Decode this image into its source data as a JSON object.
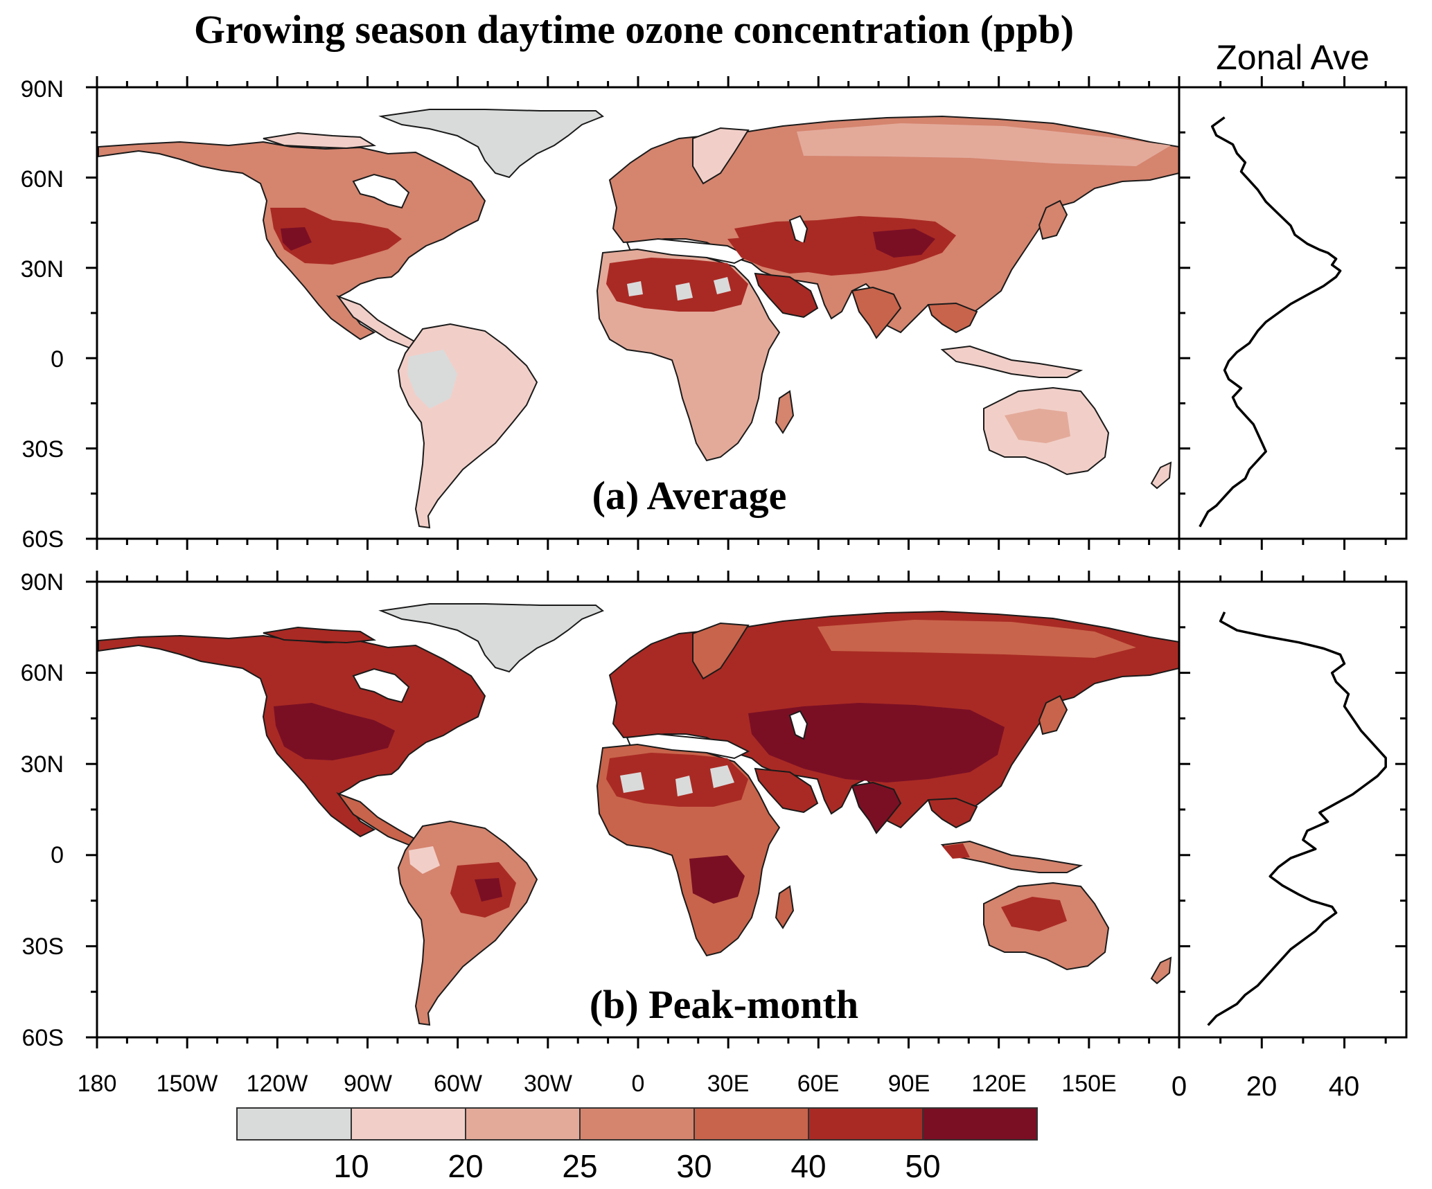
{
  "figure": {
    "title": "Growing season daytime ozone concentration (ppb)",
    "zonal_title": "Zonal Ave"
  },
  "axes": {
    "lat_labels": [
      "90N",
      "60N",
      "30N",
      "0",
      "30S",
      "60S"
    ],
    "lon_labels": [
      "180",
      "150W",
      "120W",
      "90W",
      "60W",
      "30W",
      "0",
      "30E",
      "60E",
      "90E",
      "120E",
      "150E"
    ],
    "zonal_tick_labels": [
      "0",
      "20",
      "40"
    ]
  },
  "panels": [
    {
      "id": "a",
      "label": "(a) Average"
    },
    {
      "id": "b",
      "label": "(b) Peak-month"
    }
  ],
  "colorbar": {
    "labels": [
      "10",
      "20",
      "25",
      "30",
      "40",
      "50"
    ],
    "colors": [
      "#d9dbdb",
      "#f1cfc8",
      "#e3aa9a",
      "#d5846e",
      "#c8644b",
      "#a92a24",
      "#7a0f24"
    ]
  },
  "chart_data": [
    {
      "type": "line",
      "title": "Zonal Ave",
      "xlabel": "",
      "ylabel": "",
      "xlim": [
        0,
        55
      ],
      "ylim": [
        -60,
        90
      ],
      "series": [
        {
          "x": [
            11,
            8,
            9,
            13,
            14,
            16,
            15,
            17,
            19,
            21,
            24,
            27,
            28,
            31,
            34,
            36,
            38,
            37,
            39,
            38,
            35,
            31,
            27,
            24,
            21,
            19,
            17,
            14,
            12,
            11,
            12,
            15,
            13,
            14,
            16,
            18,
            19,
            20,
            21,
            19,
            17,
            16,
            13,
            11,
            9,
            7,
            5
          ],
          "y": [
            80,
            77,
            74,
            71,
            68,
            65,
            62,
            59,
            56,
            52,
            48,
            44,
            41,
            38,
            36,
            35,
            33,
            31,
            29,
            27,
            24,
            21,
            18,
            15,
            12,
            9,
            5,
            2,
            -1,
            -4,
            -7,
            -10,
            -13,
            -16,
            -19,
            -22,
            -25,
            -28,
            -31,
            -34,
            -37,
            -40,
            -43,
            -46,
            -49,
            -51,
            -56
          ]
        }
      ]
    },
    {
      "type": "line",
      "title": "Zonal Ave",
      "xlabel": "",
      "ylabel": "",
      "xlim": [
        0,
        55
      ],
      "ylim": [
        -60,
        90
      ],
      "series": [
        {
          "x": [
            11,
            10,
            14,
            21,
            29,
            35,
            39,
            40,
            37,
            38,
            41,
            40,
            42,
            44,
            46,
            48,
            50,
            50,
            48,
            45,
            42,
            38,
            34,
            36,
            31,
            30,
            33,
            27,
            24,
            22,
            25,
            29,
            32,
            37,
            38,
            35,
            33,
            30,
            27,
            25,
            23,
            21,
            19,
            16,
            14,
            9,
            7
          ],
          "y": [
            80,
            77,
            74,
            72,
            70,
            68,
            66,
            63,
            60,
            57,
            53,
            49,
            45,
            41,
            38,
            35,
            32,
            29,
            26,
            23,
            20,
            17,
            14,
            11,
            8,
            5,
            2,
            -1,
            -4,
            -7,
            -10,
            -13,
            -15,
            -17,
            -19,
            -22,
            -25,
            -28,
            -31,
            -34,
            -37,
            -40,
            -43,
            -46,
            -49,
            -53,
            -56
          ]
        }
      ]
    }
  ]
}
